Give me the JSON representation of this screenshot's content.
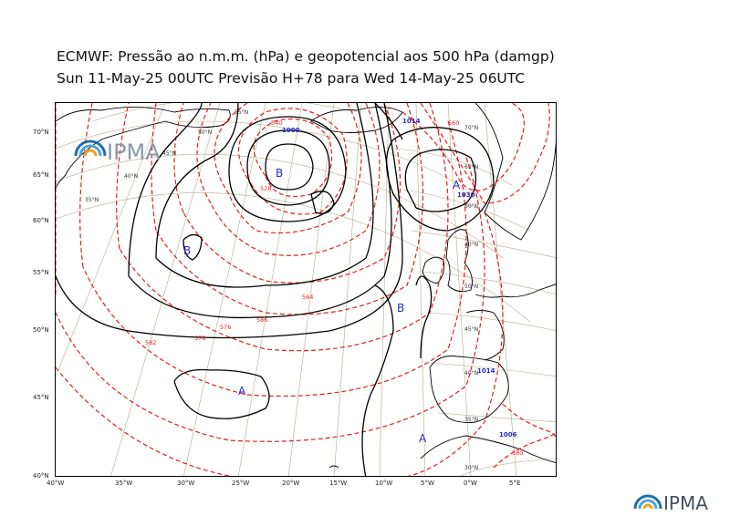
{
  "title_line1": "ECMWF:  Pressão ao n.m.m. (hPa) e geopotencial aos 500 hPa (damgp)",
  "title_line2": "Sun 11-May-25 00UTC Previsão H+78 para Wed 14-May-25 06UTC",
  "logo_text": "IPMA",
  "lat_axis_labels": [
    "70°N",
    "65°N",
    "60°N",
    "55°N",
    "50°N",
    "45°N",
    "40°N"
  ],
  "lon_axis_labels": [
    "40°W",
    "35°W",
    "30°W",
    "25°W",
    "20°W",
    "15°W",
    "10°W",
    "5°W",
    "0°W",
    "5°E"
  ],
  "graticule_labels": [
    "55°N",
    "50°N",
    "45°N",
    "40°N",
    "35°N",
    "30°N",
    "65°N",
    "60°N",
    "70°N"
  ],
  "pressure_centers": [
    {
      "symbol": "B"
    },
    {
      "symbol": "B"
    },
    {
      "symbol": "B"
    },
    {
      "symbol": "A"
    },
    {
      "symbol": "A"
    },
    {
      "symbol": "A"
    },
    {
      "symbol": "B"
    }
  ],
  "isobar_values": [
    "1000",
    "1006",
    "1014",
    "1030",
    "1014",
    "1006"
  ],
  "geopotential_values": [
    "528",
    "540",
    "564",
    "576",
    "582",
    "586",
    "578",
    "560",
    "576",
    "582",
    "580"
  ],
  "colors": {
    "isobar": "#000000",
    "geopotential": "#e0201b",
    "center_label": "#2b2bc8",
    "graticule": "#b7ab8c",
    "coast": "#000000",
    "logo_blue": "#1f6fb2",
    "logo_orange": "#f0a020"
  }
}
